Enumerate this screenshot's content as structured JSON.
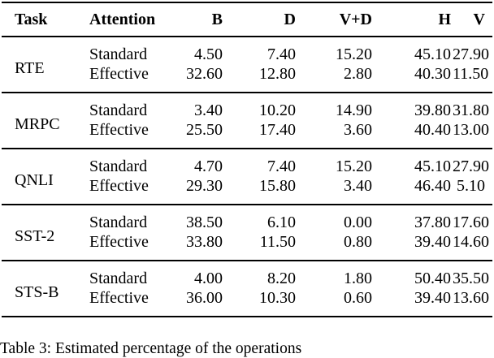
{
  "table": {
    "columns": [
      "Task",
      "Attention",
      "B",
      "D",
      "V+D",
      "H",
      "V"
    ],
    "groups": [
      {
        "task": "RTE",
        "rows": [
          {
            "attention": "Standard",
            "values": [
              "4.50",
              "7.40",
              "15.20",
              "45.10",
              "27.90"
            ]
          },
          {
            "attention": "Effective",
            "values": [
              "32.60",
              "12.80",
              "2.80",
              "40.30",
              "11.50"
            ]
          }
        ]
      },
      {
        "task": "MRPC",
        "rows": [
          {
            "attention": "Standard",
            "values": [
              "3.40",
              "10.20",
              "14.90",
              "39.80",
              "31.80"
            ]
          },
          {
            "attention": "Effective",
            "values": [
              "25.50",
              "17.40",
              "3.60",
              "40.40",
              "13.00"
            ]
          }
        ]
      },
      {
        "task": "QNLI",
        "rows": [
          {
            "attention": "Standard",
            "values": [
              "4.70",
              "7.40",
              "15.20",
              "45.10",
              "27.90"
            ]
          },
          {
            "attention": "Effective",
            "values": [
              "29.30",
              "15.80",
              "3.40",
              "46.40",
              "5.10"
            ]
          }
        ]
      },
      {
        "task": "SST-2",
        "rows": [
          {
            "attention": "Standard",
            "values": [
              "38.50",
              "6.10",
              "0.00",
              "37.80",
              "17.60"
            ]
          },
          {
            "attention": "Effective",
            "values": [
              "33.80",
              "11.50",
              "0.80",
              "39.40",
              "14.60"
            ]
          }
        ]
      },
      {
        "task": "STS-B",
        "rows": [
          {
            "attention": "Standard",
            "values": [
              "4.00",
              "8.20",
              "1.80",
              "50.40",
              "35.50"
            ]
          },
          {
            "attention": "Effective",
            "values": [
              "36.00",
              "10.30",
              "0.60",
              "39.40",
              "13.60"
            ]
          }
        ]
      }
    ]
  },
  "caption": "Table 3: Estimated percentage of the operations"
}
